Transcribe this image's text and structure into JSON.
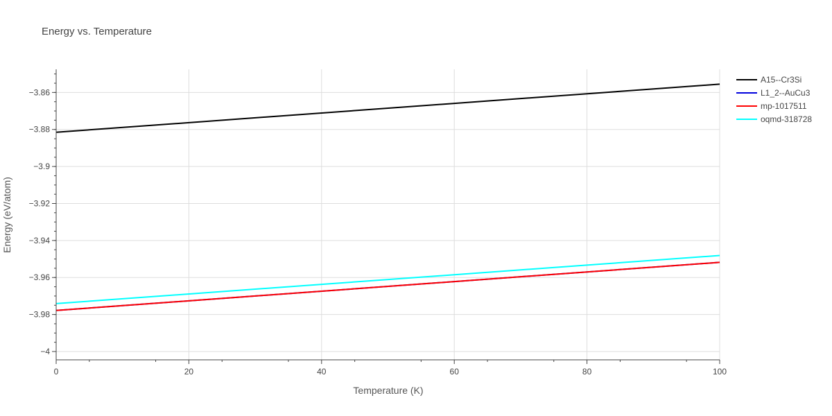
{
  "chart_data": {
    "type": "line",
    "title": "Energy vs. Temperature",
    "xlabel": "Temperature (K)",
    "ylabel": "Energy (eV/atom)",
    "xlim": [
      0,
      100
    ],
    "ylim": [
      -4.0045,
      -3.8475
    ],
    "x_ticks": [
      0,
      20,
      40,
      60,
      80,
      100
    ],
    "x_tick_labels": [
      "0",
      "20",
      "40",
      "60",
      "80",
      "100"
    ],
    "y_ticks": [
      -3.86,
      -3.88,
      -3.9,
      -3.92,
      -3.94,
      -3.96,
      -3.98,
      -4
    ],
    "y_tick_labels": [
      "−3.86",
      "−3.88",
      "−3.9",
      "−3.92",
      "−3.94",
      "−3.96",
      "−3.98",
      "−4"
    ],
    "grid": true,
    "legend_position": "top-right",
    "series": [
      {
        "name": "A15--Cr3Si",
        "color": "#000000",
        "x": [
          0,
          100
        ],
        "y": [
          -3.8815,
          -3.8555
        ]
      },
      {
        "name": "L1_2--AuCu3",
        "color": "#0000dd",
        "x": [
          0,
          100
        ],
        "y": [
          -3.9778,
          -3.9518
        ]
      },
      {
        "name": "mp-1017511",
        "color": "#ff0000",
        "x": [
          0,
          100
        ],
        "y": [
          -3.9778,
          -3.9518
        ]
      },
      {
        "name": "oqmd-318728",
        "color": "#00ffff",
        "x": [
          0,
          100
        ],
        "y": [
          -3.9741,
          -3.9481
        ]
      }
    ]
  }
}
